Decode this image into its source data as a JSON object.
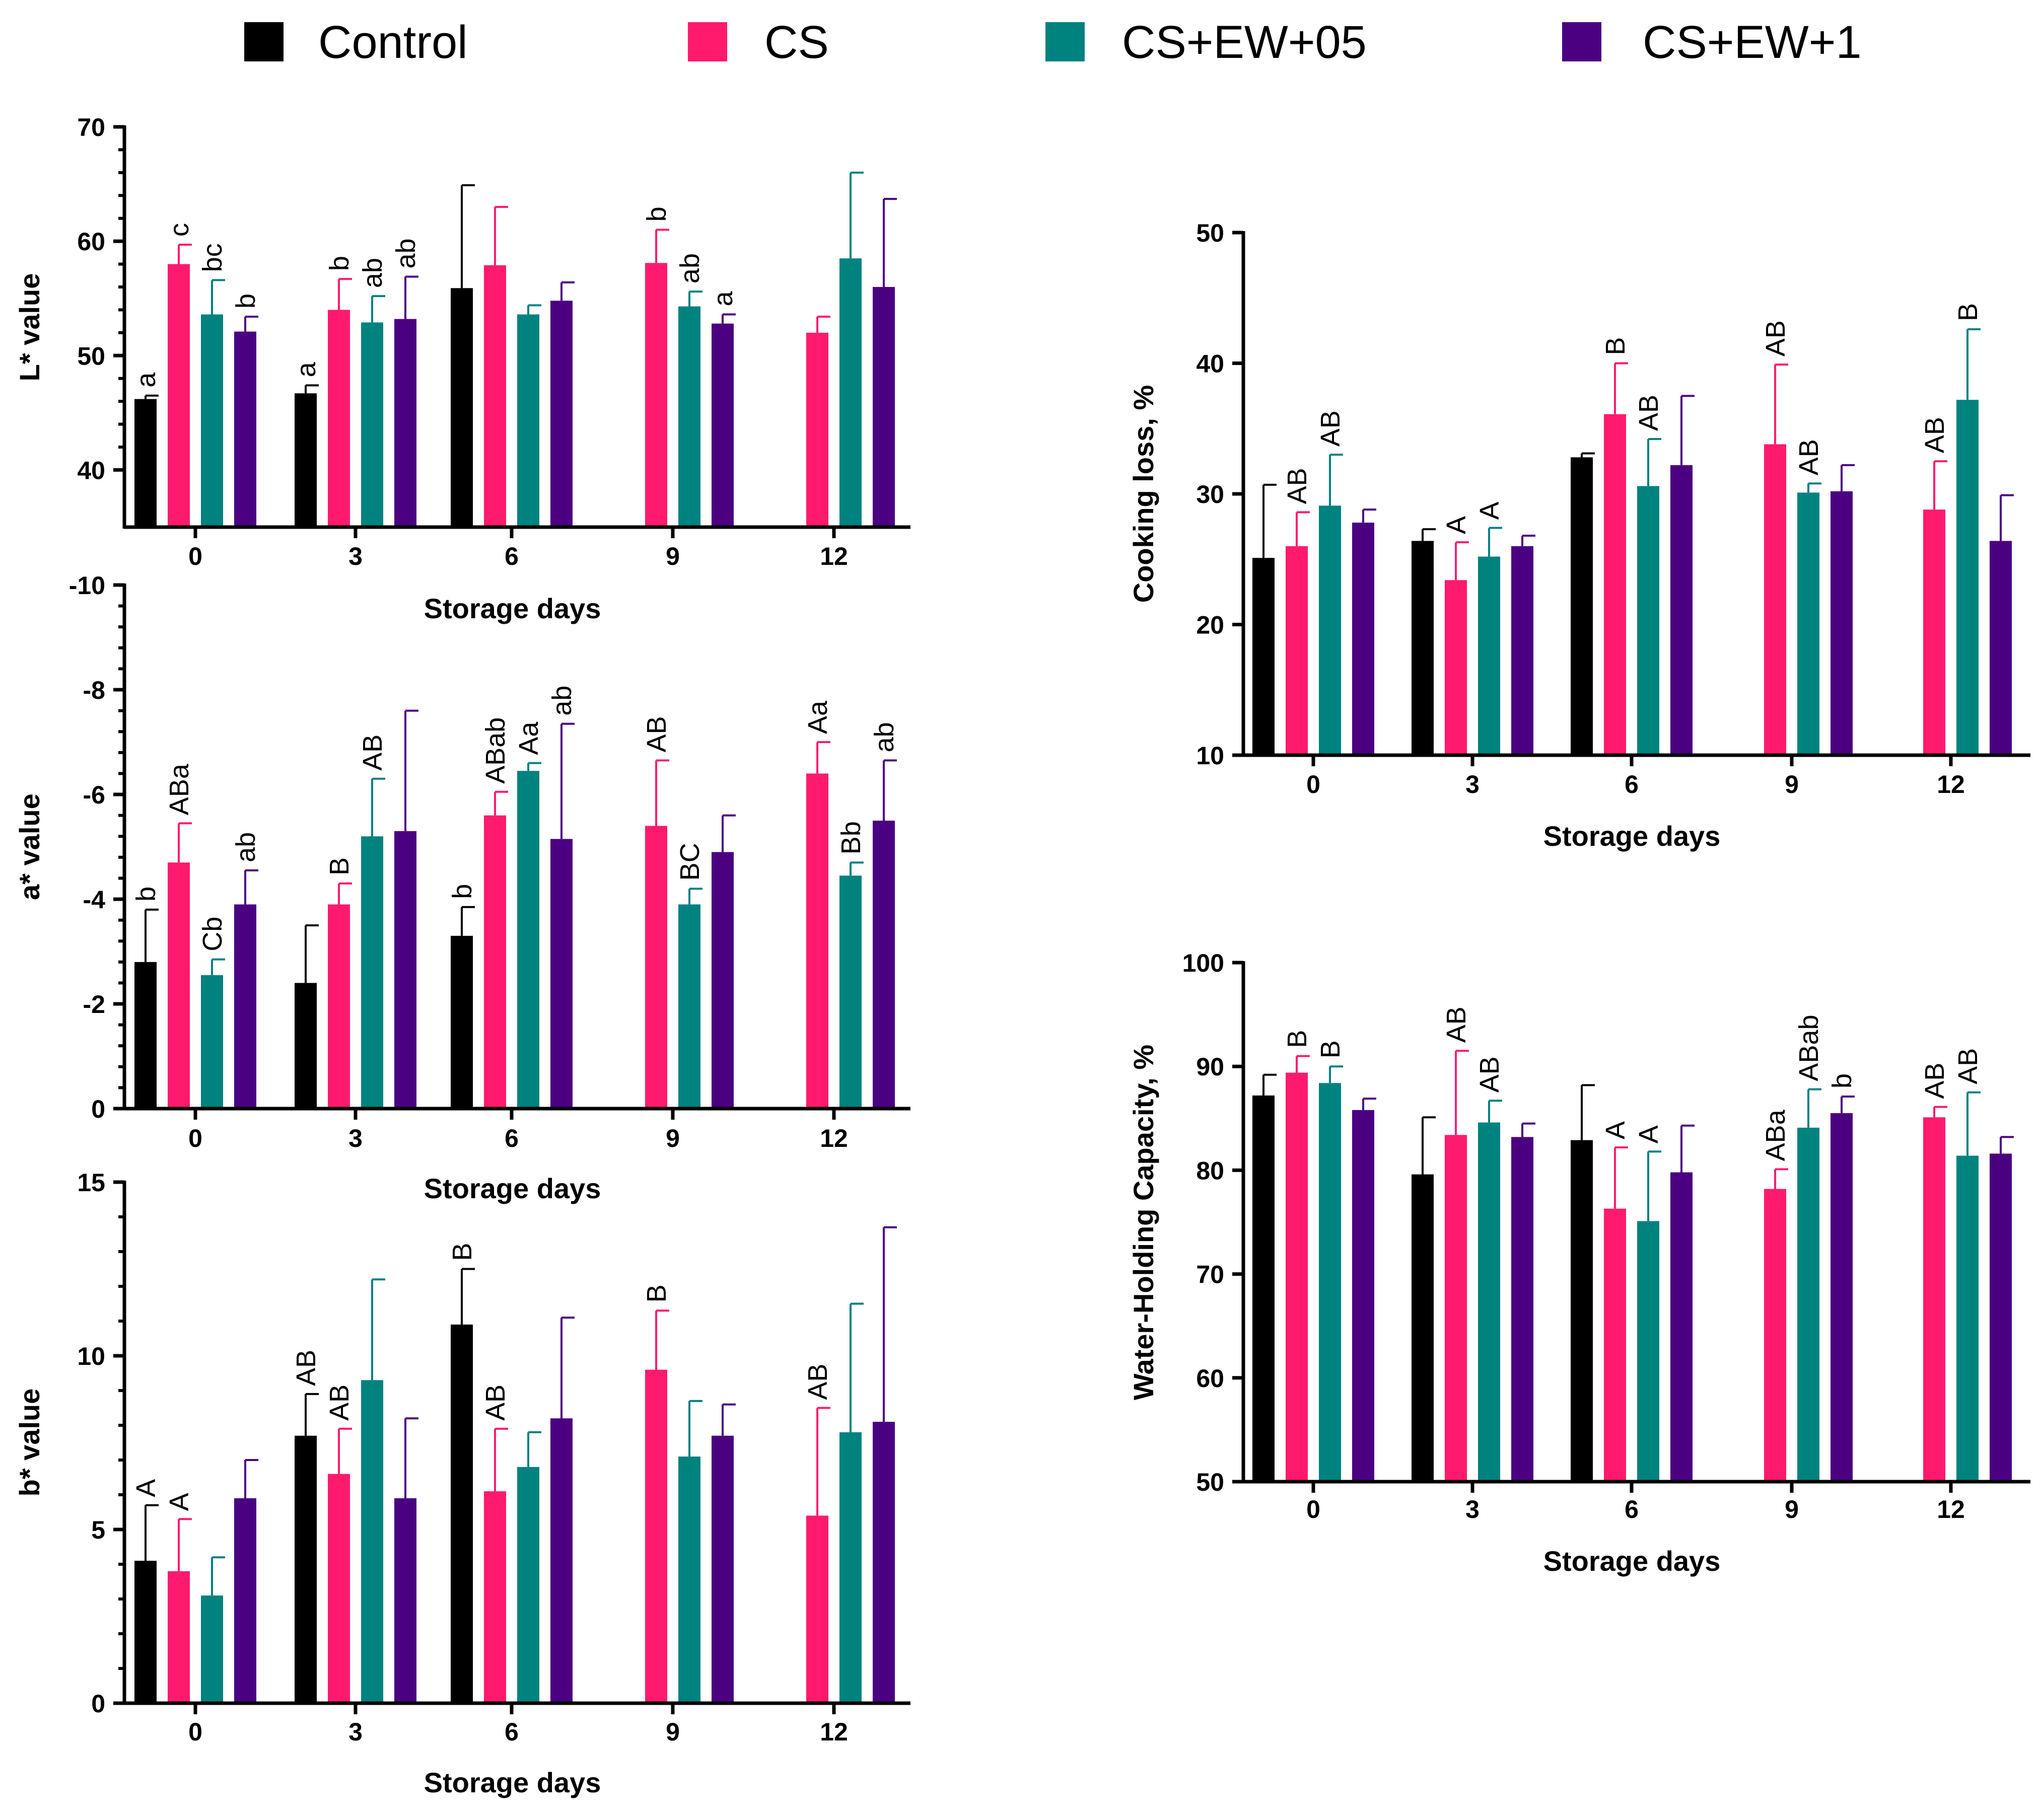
{
  "legend": [
    {
      "name": "Control",
      "color": "#000000"
    },
    {
      "name": "CS",
      "color": "#FF1A6E"
    },
    {
      "name": "CS+EW+05",
      "color": "#00827F"
    },
    {
      "name": "CS+EW+1",
      "color": "#4B0082"
    }
  ],
  "chart_data": [
    {
      "id": "L",
      "type": "bar",
      "title": "",
      "xlabel": "Storage days",
      "ylabel": "L* value",
      "categories": [
        "0",
        "3",
        "6",
        "9",
        "12"
      ],
      "ylim": [
        35,
        70
      ],
      "yticks": [
        40,
        50,
        60,
        70
      ],
      "series": [
        {
          "name": "Control",
          "values": [
            46.2,
            46.7,
            55.9,
            null,
            null
          ],
          "err": [
            0.3,
            0.7,
            9.0,
            null,
            null
          ],
          "labels": [
            "a",
            "a",
            "",
            "",
            ""
          ]
        },
        {
          "name": "CS",
          "values": [
            58.0,
            54.0,
            57.9,
            58.1,
            52.0
          ],
          "err": [
            1.7,
            2.7,
            5.1,
            2.9,
            1.4
          ],
          "labels": [
            "c",
            "b",
            "",
            "b",
            ""
          ]
        },
        {
          "name": "CS+EW+05",
          "values": [
            53.6,
            52.9,
            53.6,
            54.3,
            58.5
          ],
          "err": [
            3.0,
            2.3,
            0.8,
            1.3,
            7.5
          ],
          "labels": [
            "bc",
            "ab",
            "",
            "ab",
            ""
          ]
        },
        {
          "name": "CS+EW+1",
          "values": [
            52.1,
            53.2,
            54.8,
            52.8,
            56.0
          ],
          "err": [
            1.3,
            3.7,
            1.6,
            0.8,
            7.7
          ],
          "labels": [
            "b",
            "ab",
            "",
            "a",
            ""
          ]
        }
      ]
    },
    {
      "id": "a",
      "type": "bar",
      "title": "",
      "xlabel": "Storage days",
      "ylabel": "a* value",
      "categories": [
        "0",
        "3",
        "6",
        "9",
        "12"
      ],
      "ylim": [
        0,
        -10
      ],
      "yticks": [
        0,
        -2,
        -4,
        -6,
        -8,
        -10
      ],
      "series": [
        {
          "name": "Control",
          "values": [
            -2.8,
            -2.4,
            -3.3,
            null,
            null
          ],
          "err": [
            1.0,
            1.1,
            0.55,
            null,
            null
          ],
          "labels": [
            "b",
            "",
            "b",
            "",
            ""
          ]
        },
        {
          "name": "CS",
          "values": [
            -4.7,
            -3.9,
            -5.6,
            -5.4,
            -6.4
          ],
          "err": [
            0.75,
            0.4,
            0.45,
            1.25,
            0.6
          ],
          "labels": [
            "ABa",
            "B",
            "ABab",
            "AB",
            "Aa"
          ]
        },
        {
          "name": "CS+EW+05",
          "values": [
            -2.55,
            -5.2,
            -6.45,
            -3.9,
            -4.45
          ],
          "err": [
            0.3,
            1.1,
            0.15,
            0.3,
            0.25
          ],
          "labels": [
            "Cb",
            "AB",
            "Aa",
            "BC",
            "Bb"
          ]
        },
        {
          "name": "CS+EW+1",
          "values": [
            -3.9,
            -5.3,
            -5.15,
            -4.9,
            -5.5
          ],
          "err": [
            0.65,
            2.3,
            2.2,
            0.7,
            1.15
          ],
          "labels": [
            "ab",
            "",
            "ab",
            "",
            "ab"
          ]
        }
      ]
    },
    {
      "id": "b",
      "type": "bar",
      "title": "",
      "xlabel": "Storage days",
      "ylabel": "b* value",
      "categories": [
        "0",
        "3",
        "6",
        "9",
        "12"
      ],
      "ylim": [
        0,
        15
      ],
      "yticks": [
        0,
        5,
        10,
        15
      ],
      "series": [
        {
          "name": "Control",
          "values": [
            4.1,
            7.7,
            10.9,
            null,
            null
          ],
          "err": [
            1.6,
            1.2,
            1.6,
            null,
            null
          ],
          "labels": [
            "A",
            "AB",
            "B",
            "",
            ""
          ]
        },
        {
          "name": "CS",
          "values": [
            3.8,
            6.6,
            6.1,
            9.6,
            5.4
          ],
          "err": [
            1.5,
            1.3,
            1.8,
            1.7,
            3.1
          ],
          "labels": [
            "A",
            "AB",
            "AB",
            "B",
            "AB"
          ]
        },
        {
          "name": "CS+EW+05",
          "values": [
            3.1,
            9.3,
            6.8,
            7.1,
            7.8
          ],
          "err": [
            1.1,
            2.9,
            1.0,
            1.6,
            3.7
          ],
          "labels": [
            "",
            "",
            "",
            "",
            ""
          ]
        },
        {
          "name": "CS+EW+1",
          "values": [
            5.9,
            5.9,
            8.2,
            7.7,
            8.1
          ],
          "err": [
            1.1,
            2.3,
            2.9,
            0.9,
            5.6
          ],
          "labels": [
            "",
            "",
            "",
            "",
            ""
          ]
        }
      ]
    },
    {
      "id": "CL",
      "type": "bar",
      "title": "",
      "xlabel": "Storage days",
      "ylabel": "Cooking loss, %",
      "categories": [
        "0",
        "3",
        "6",
        "9",
        "12"
      ],
      "ylim": [
        10,
        50
      ],
      "yticks": [
        10,
        20,
        30,
        40,
        50
      ],
      "series": [
        {
          "name": "Control",
          "values": [
            25.1,
            26.4,
            32.8,
            null,
            null
          ],
          "err": [
            5.6,
            0.9,
            0.3,
            null,
            null
          ],
          "labels": [
            "",
            "",
            "",
            "",
            ""
          ]
        },
        {
          "name": "CS",
          "values": [
            26.0,
            23.4,
            36.1,
            33.8,
            28.8
          ],
          "err": [
            2.6,
            2.9,
            3.9,
            6.1,
            3.7
          ],
          "labels": [
            "AB",
            "A",
            "B",
            "AB",
            "AB"
          ]
        },
        {
          "name": "CS+EW+05",
          "values": [
            29.1,
            25.2,
            30.6,
            30.1,
            37.2
          ],
          "err": [
            3.9,
            2.2,
            3.6,
            0.7,
            5.4
          ],
          "labels": [
            "AB",
            "A",
            "AB",
            "AB",
            "B"
          ]
        },
        {
          "name": "CS+EW+1",
          "values": [
            27.8,
            26.0,
            32.2,
            30.2,
            26.4
          ],
          "err": [
            1.0,
            0.8,
            5.3,
            2.0,
            3.5
          ],
          "labels": [
            "",
            "",
            "",
            "",
            ""
          ]
        }
      ]
    },
    {
      "id": "WHC",
      "type": "bar",
      "title": "",
      "xlabel": "Storage days",
      "ylabel": "Water-Holding Capacity, %",
      "categories": [
        "0",
        "3",
        "6",
        "9",
        "12"
      ],
      "ylim": [
        50,
        100
      ],
      "yticks": [
        50,
        60,
        70,
        80,
        90,
        100
      ],
      "series": [
        {
          "name": "Control",
          "values": [
            87.2,
            79.6,
            82.9,
            null,
            null
          ],
          "err": [
            2.0,
            5.5,
            5.3,
            null,
            null
          ],
          "labels": [
            "",
            "",
            "",
            "",
            ""
          ]
        },
        {
          "name": "CS",
          "values": [
            89.4,
            83.4,
            76.3,
            78.2,
            85.1
          ],
          "err": [
            1.6,
            8.1,
            5.9,
            1.9,
            1.0
          ],
          "labels": [
            "B",
            "AB",
            "A",
            "ABa",
            "AB"
          ]
        },
        {
          "name": "CS+EW+05",
          "values": [
            88.4,
            84.6,
            75.1,
            84.1,
            81.4
          ],
          "err": [
            1.6,
            2.1,
            6.7,
            3.7,
            6.1
          ],
          "labels": [
            "B",
            "AB",
            "A",
            "ABab",
            "AB"
          ]
        },
        {
          "name": "CS+EW+1",
          "values": [
            85.8,
            83.2,
            79.8,
            85.5,
            81.6
          ],
          "err": [
            1.1,
            1.3,
            4.5,
            1.6,
            1.6
          ],
          "labels": [
            "",
            "",
            "",
            "b",
            ""
          ]
        }
      ]
    }
  ]
}
